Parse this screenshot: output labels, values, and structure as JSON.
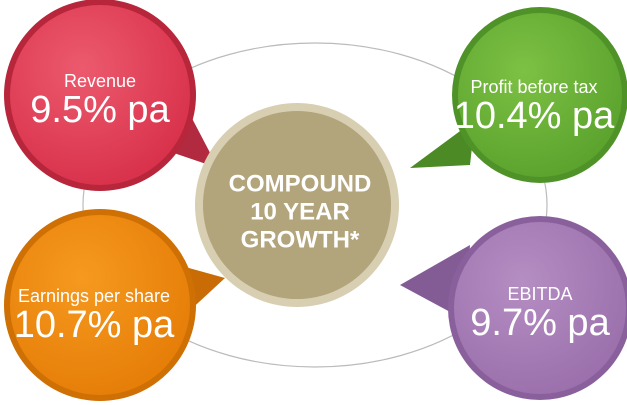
{
  "center": {
    "lines": [
      "COMPOUND",
      "10 YEAR",
      "GROWTH*"
    ]
  },
  "nodes": [
    {
      "label": "Revenue",
      "value": "9.5% pa"
    },
    {
      "label": "Profit before tax",
      "value": "10.4% pa"
    },
    {
      "label": "Earnings per share",
      "value": "10.7% pa"
    },
    {
      "label": "EBITDA",
      "value": "9.7% pa"
    }
  ]
}
